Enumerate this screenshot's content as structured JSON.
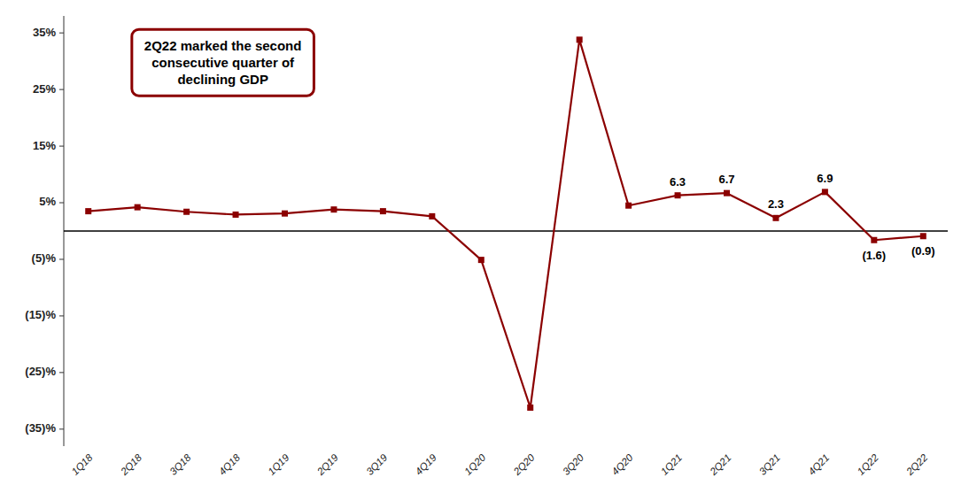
{
  "chart_data": {
    "type": "line",
    "categories": [
      "1Q18",
      "2Q18",
      "3Q18",
      "4Q18",
      "1Q19",
      "2Q19",
      "3Q19",
      "4Q19",
      "1Q20",
      "2Q20",
      "3Q20",
      "4Q20",
      "1Q21",
      "2Q21",
      "3Q21",
      "4Q21",
      "1Q22",
      "2Q22"
    ],
    "values": [
      3.5,
      4.2,
      3.4,
      2.9,
      3.1,
      3.8,
      3.5,
      2.6,
      -5.1,
      -31.2,
      33.8,
      4.5,
      6.3,
      6.7,
      2.3,
      6.9,
      -1.6,
      -0.9
    ],
    "value_labels": [
      null,
      null,
      null,
      null,
      null,
      null,
      null,
      null,
      null,
      null,
      null,
      null,
      "6.3",
      "6.7",
      "2.3",
      "6.9",
      "(1.6)",
      "(0.9)"
    ],
    "color": "#8B0000",
    "marker": "square",
    "annotations": [
      {
        "text": "2Q22 marked the second\nconsecutive quarter of\ndeclining GDP",
        "color": "#8B0000"
      }
    ],
    "ylim": [
      -38,
      38
    ],
    "yticks": [
      {
        "value": 35,
        "label": "35%"
      },
      {
        "value": 25,
        "label": "25%"
      },
      {
        "value": 15,
        "label": "15%"
      },
      {
        "value": 5,
        "label": "5%"
      },
      {
        "value": -5,
        "label": "(5)%"
      },
      {
        "value": -15,
        "label": "(15)%"
      },
      {
        "value": -25,
        "label": "(25)%"
      },
      {
        "value": -35,
        "label": "(35)%"
      }
    ],
    "grid": false
  }
}
